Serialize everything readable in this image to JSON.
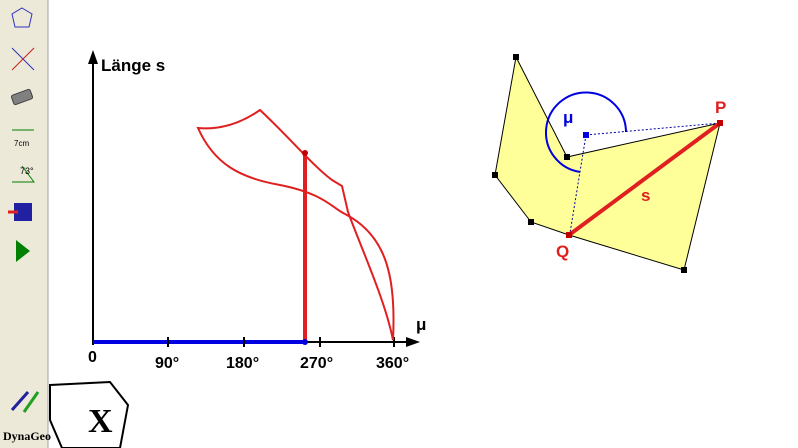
{
  "graph": {
    "y_label": "Länge s",
    "x_label": "μ",
    "ticks": [
      "0",
      "90°",
      "180°",
      "270°",
      "360°"
    ]
  },
  "figure": {
    "angle_label": "μ",
    "point_p": "P",
    "point_q": "Q",
    "segment_label": "s"
  },
  "logo": "DynaGeo"
}
